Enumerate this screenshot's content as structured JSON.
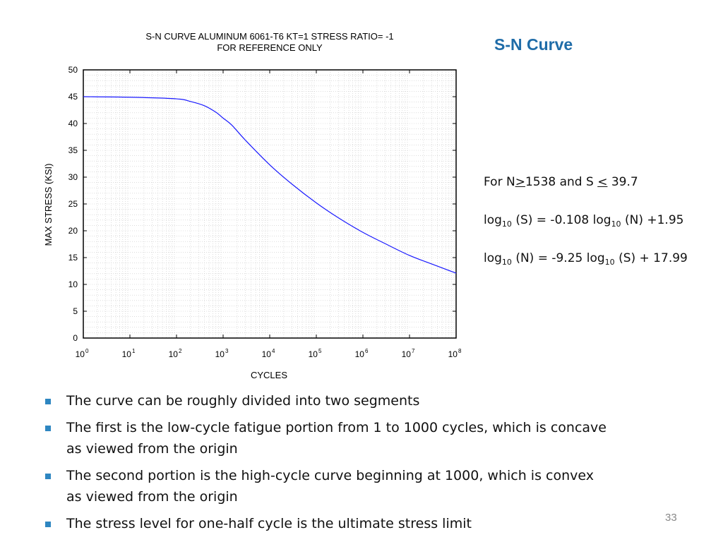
{
  "slide": {
    "title": "S-N Curve",
    "page_number": "33",
    "note_condition": {
      "prefix": "For N",
      "ge": ">",
      "n_value": "1538 and S ",
      "le": "<",
      "s_value": " 39.7"
    },
    "eq1": {
      "log": "log",
      "base": "10",
      "part1": " (S) = -0.108 ",
      "part2": " (N) +1.95"
    },
    "eq2": {
      "log": "log",
      "base": "10",
      "part1": " (N) = -9.25 ",
      "part2": " (S) + 17.99"
    },
    "bullets": [
      "The curve can be roughly divided into two segments",
      "The first is the low-cycle fatigue portion from 1 to 1000 cycles, which is concave as viewed from the origin",
      "The second portion is the high-cycle curve beginning at 1000, which is convex as viewed from the origin",
      "The stress level for one-half cycle is the ultimate stress limit"
    ],
    "bullet_color": "#2e86c1",
    "title_color": "#1f6ca8"
  },
  "chart_data": {
    "type": "line",
    "title": "S-N CURVE  ALUMINUM 6061-T6    KT=1    STRESS RATIO= -1",
    "subtitle": "FOR REFERENCE ONLY",
    "xlabel": "CYCLES",
    "ylabel": "MAX STRESS (KSI)",
    "x_scale": "log",
    "xlim": [
      1,
      100000000
    ],
    "ylim": [
      0,
      50
    ],
    "x_ticks": [
      {
        "base": "10",
        "exp": "0"
      },
      {
        "base": "10",
        "exp": "1"
      },
      {
        "base": "10",
        "exp": "2"
      },
      {
        "base": "10",
        "exp": "3"
      },
      {
        "base": "10",
        "exp": "4"
      },
      {
        "base": "10",
        "exp": "5"
      },
      {
        "base": "10",
        "exp": "6"
      },
      {
        "base": "10",
        "exp": "7"
      },
      {
        "base": "10",
        "exp": "8"
      }
    ],
    "y_ticks": [
      "0",
      "5",
      "10",
      "15",
      "20",
      "25",
      "30",
      "35",
      "40",
      "45",
      "50"
    ],
    "grid": true,
    "series": [
      {
        "color": "#1a1aff",
        "x": [
          1,
          10,
          100,
          200,
          400,
          700,
          1000,
          1538,
          3000,
          10000,
          30000,
          100000,
          300000,
          1000000,
          3000000,
          10000000,
          30000000,
          100000000
        ],
        "y": [
          45.0,
          44.9,
          44.6,
          44.1,
          43.3,
          42.1,
          41.0,
          39.7,
          36.9,
          32.3,
          28.7,
          25.2,
          22.4,
          19.7,
          17.6,
          15.4,
          13.8,
          12.1
        ]
      }
    ]
  }
}
